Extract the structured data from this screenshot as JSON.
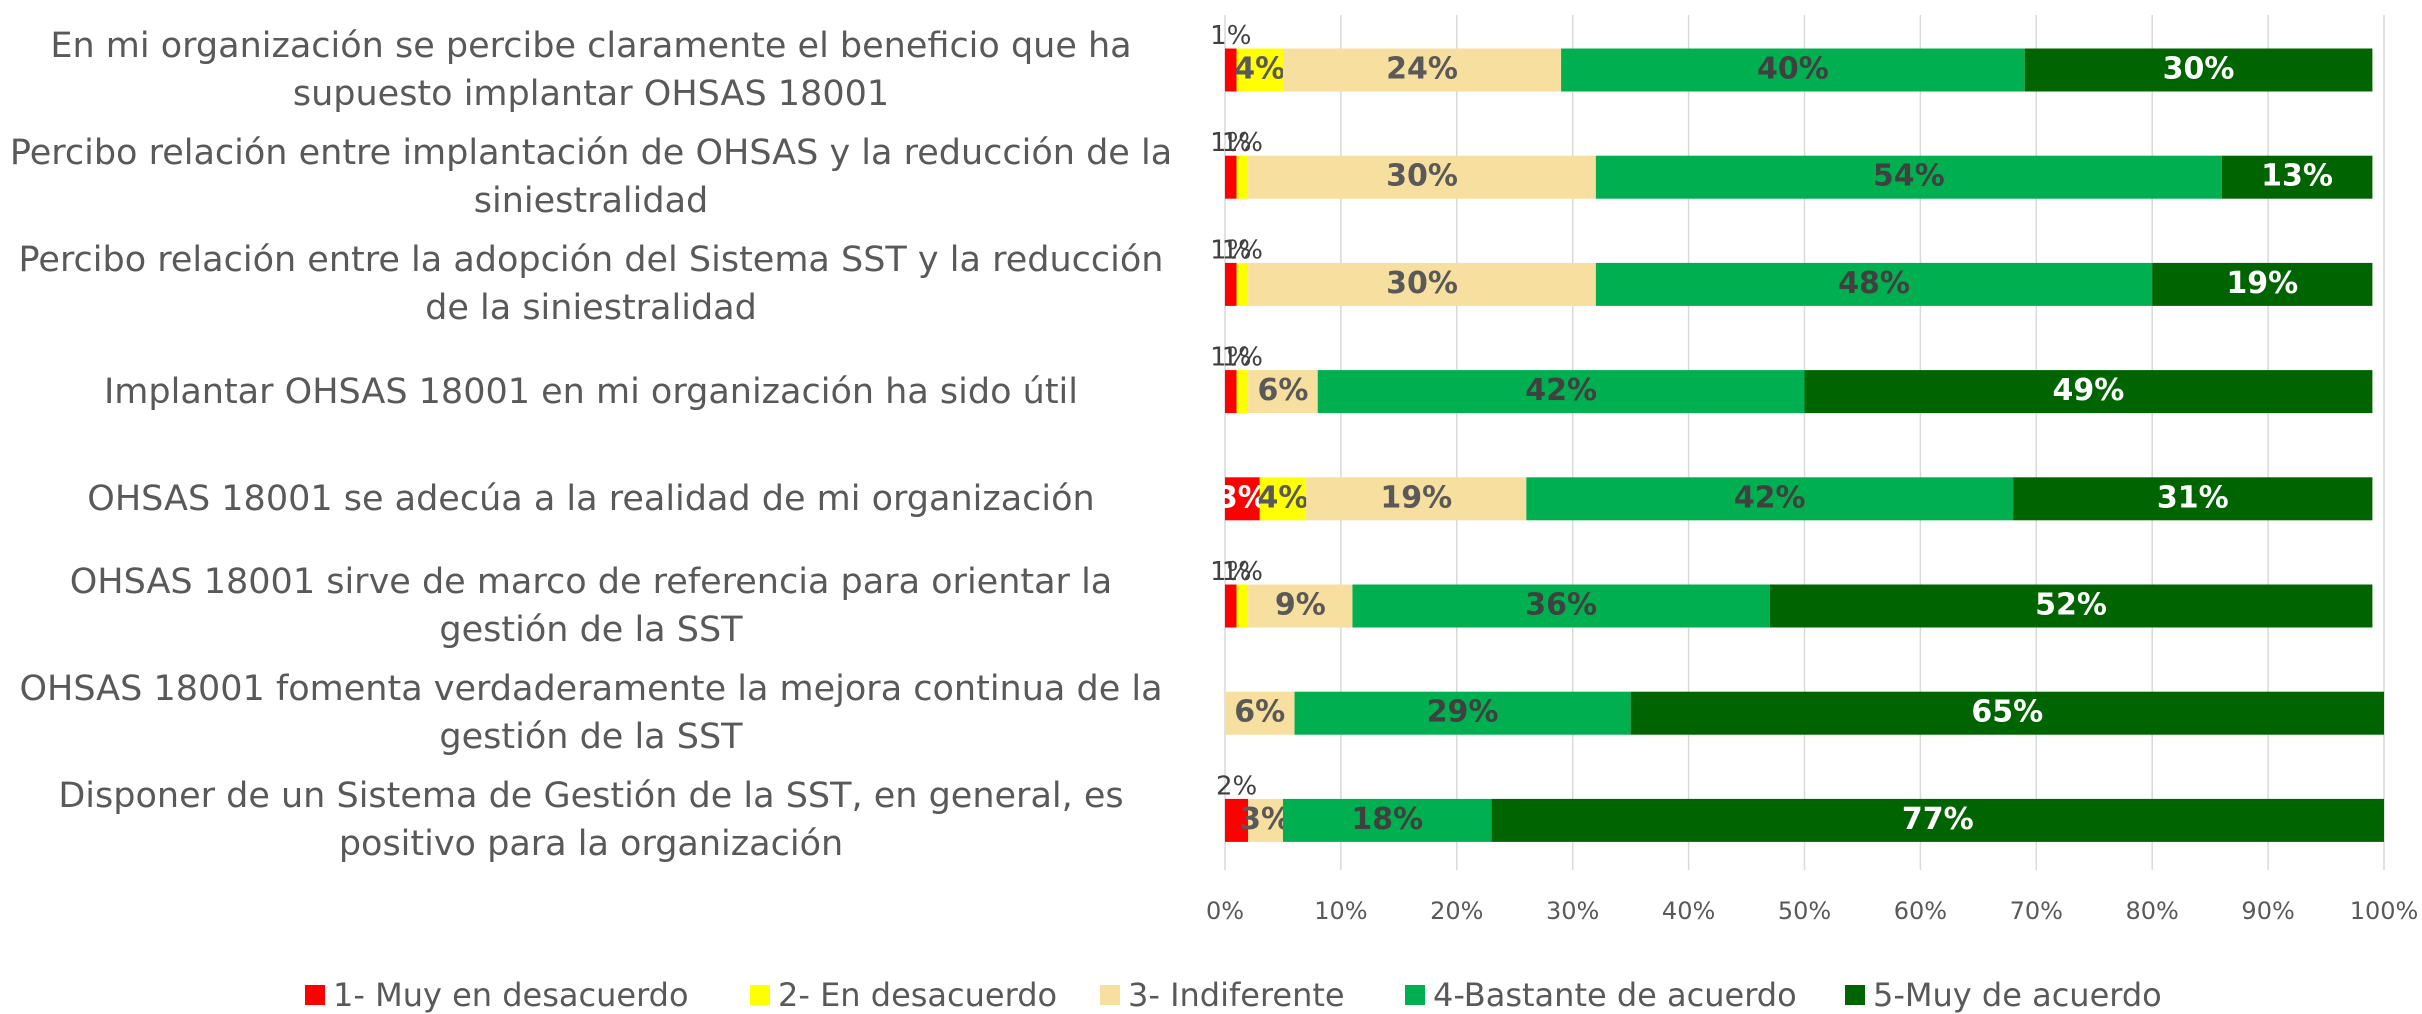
{
  "chart_data": {
    "type": "stacked-bar-horizontal",
    "categories": [
      "En mi organización se percibe claramente el beneficio que ha supuesto implantar OHSAS 18001",
      "Percibo relación entre implantación de OHSAS y la reducción de la siniestralidad",
      "Percibo relación entre la adopción del Sistema SST y la reducción de la siniestralidad",
      "Implantar OHSAS 18001 en mi organización ha sido útil",
      "OHSAS 18001 se adecúa a la realidad de mi organización",
      "OHSAS 18001 sirve de marco de referencia para orientar la gestión de la SST",
      "OHSAS 18001 fomenta verdaderamente la mejora continua de la gestión de la SST",
      "Disponer de un Sistema de Gestión de la SST, en general,  es positivo para la organización"
    ],
    "series": [
      {
        "name": "1- Muy en desacuerdo",
        "color": "#ff0000",
        "values": [
          1,
          1,
          1,
          1,
          3,
          1,
          null,
          2
        ],
        "value_labels": [
          "1%",
          "1%",
          "1%",
          "1%",
          "3%",
          "1%",
          null,
          "2%"
        ]
      },
      {
        "name": "2- En desacuerdo",
        "color": "#ffff00",
        "values": [
          4,
          1,
          1,
          1,
          4,
          1,
          null,
          null
        ],
        "value_labels": [
          "4%",
          "1%",
          "1%",
          "1%",
          "4%",
          "1%",
          null,
          null
        ]
      },
      {
        "name": "3- Indiferente",
        "color": "#f7df9f",
        "values": [
          24,
          30,
          30,
          6,
          19,
          9,
          6,
          3
        ],
        "value_labels": [
          "24%",
          "30%",
          "30%",
          "6%",
          "19%",
          "9%",
          "6%",
          "3%"
        ]
      },
      {
        "name": "4-Bastante de acuerdo",
        "color": "#00b050",
        "values": [
          40,
          54,
          48,
          42,
          42,
          36,
          29,
          18
        ],
        "value_labels": [
          "40%",
          "54%",
          "48%",
          "42%",
          "42%",
          "36%",
          "29%",
          "18%"
        ]
      },
      {
        "name": "5-Muy de acuerdo",
        "color": "#006400",
        "values": [
          30,
          13,
          19,
          49,
          31,
          52,
          65,
          77
        ],
        "value_labels": [
          "30%",
          "13%",
          "19%",
          "49%",
          "31%",
          "52%",
          "65%",
          "77%"
        ]
      }
    ],
    "xlim": [
      0,
      100
    ],
    "xticks": [
      {
        "value": 0,
        "label": "0%"
      },
      {
        "value": 10,
        "label": "10%"
      },
      {
        "value": 20,
        "label": "20%"
      },
      {
        "value": 30,
        "label": "30%"
      },
      {
        "value": 40,
        "label": "40%"
      },
      {
        "value": 50,
        "label": "50%"
      },
      {
        "value": 60,
        "label": "60%"
      },
      {
        "value": 70,
        "label": "70%"
      },
      {
        "value": 80,
        "label": "80%"
      },
      {
        "value": 90,
        "label": "90%"
      },
      {
        "value": 100,
        "label": "100%"
      }
    ],
    "grid": true,
    "legend": "bottom"
  }
}
